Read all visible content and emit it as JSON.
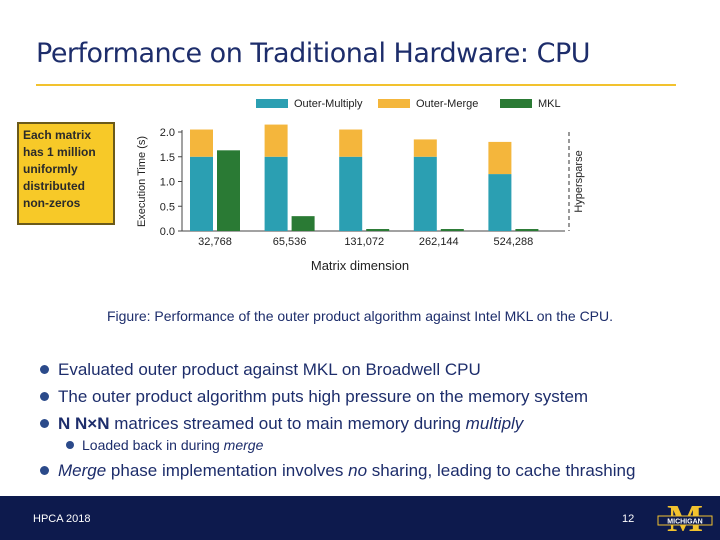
{
  "slide": {
    "title": "Performance on Traditional Hardware: CPU",
    "callout_lines": [
      "Each matrix",
      "has 1 million",
      "uniformly",
      "distributed",
      "non-zeros"
    ],
    "xaxis_title": "Matrix dimension",
    "caption": "Figure: Performance of the outer product algorithm against Intel MKL on the CPU.",
    "bullets": [
      {
        "parts": [
          {
            "t": "Evaluated outer product against MKL on Broadwell CPU"
          }
        ]
      },
      {
        "parts": [
          {
            "t": "The outer product algorithm puts high pressure on the memory system"
          }
        ]
      },
      {
        "parts": [
          {
            "t": "N N×N",
            "b": true
          },
          {
            "t": " matrices streamed out to main memory during "
          },
          {
            "t": "multiply",
            "i": true
          }
        ],
        "sub": [
          {
            "parts": [
              {
                "t": "Loaded back in during "
              },
              {
                "t": "merge",
                "i": true
              }
            ]
          }
        ]
      },
      {
        "parts": [
          {
            "t": "Merge",
            "i": true
          },
          {
            "t": " phase implementation involves "
          },
          {
            "t": "no",
            "i": true
          },
          {
            "t": " sharing, leading to cache thrashing"
          }
        ]
      }
    ],
    "footer_left": "HPCA 2018",
    "page_number": "12",
    "logo_text": "MICHIGAN",
    "logo_letter": "M"
  },
  "colors": {
    "outer_multiply": "#2b9fb2",
    "outer_merge": "#f4b63c",
    "mkl": "#2a7a34",
    "title": "#1d2d6b",
    "accent": "#f2c22e",
    "footer": "#0d1a4d"
  },
  "chart_data": {
    "type": "bar",
    "stacked": true,
    "categories": [
      "32,768",
      "65,536",
      "131,072",
      "262,144",
      "524,288"
    ],
    "series": [
      {
        "name": "Outer-Multiply",
        "values": [
          1.5,
          1.5,
          1.5,
          1.5,
          1.15
        ],
        "stack": "outer"
      },
      {
        "name": "Outer-Merge",
        "values": [
          0.55,
          0.65,
          0.55,
          0.35,
          0.65
        ],
        "stack": "outer"
      },
      {
        "name": "MKL",
        "values": [
          1.63,
          0.3,
          0.04,
          0.04,
          0.04
        ],
        "stack": "mkl"
      }
    ],
    "ylabel": "Execution Time (s)",
    "ylim": [
      0,
      2.0
    ],
    "yticks": [
      "0.0",
      "0.5",
      "1.0",
      "1.5",
      "2.0"
    ],
    "ytick_values": [
      0,
      0.5,
      1.0,
      1.5,
      2.0
    ],
    "legend_position": "top",
    "annotation": "Hypersparse"
  }
}
